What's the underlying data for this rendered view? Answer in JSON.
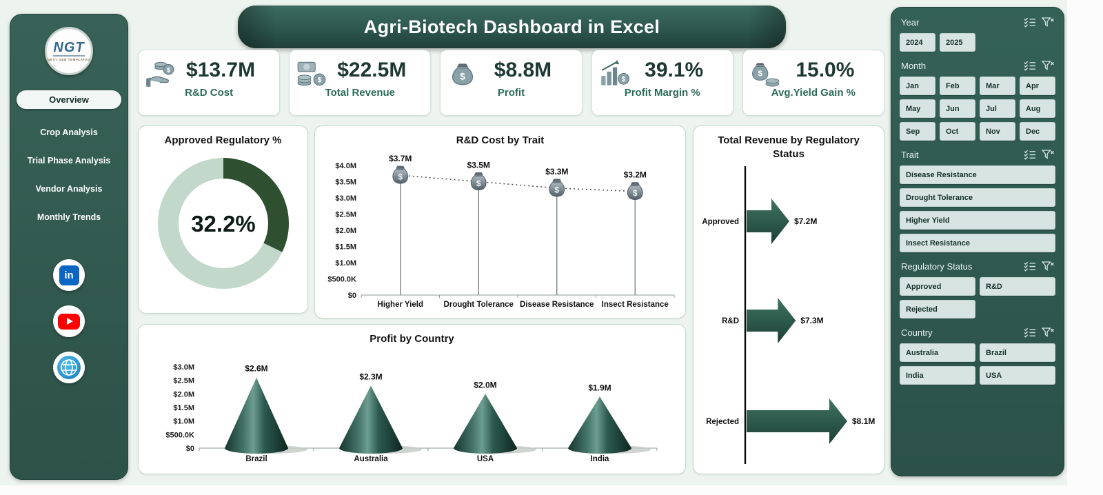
{
  "page": {
    "title": "Agri-Biotech Dashboard in Excel"
  },
  "sidebar": {
    "logo_text": "NGT",
    "logo_sub": "NEXT GEN TEMPLATES",
    "nav": [
      {
        "label": "Overview",
        "active": true
      },
      {
        "label": "Crop Analysis"
      },
      {
        "label": "Trial Phase Analysis"
      },
      {
        "label": "Vendor Analysis"
      },
      {
        "label": "Monthly Trends"
      }
    ],
    "social": {
      "linkedin_glyph": "in"
    }
  },
  "kpis": [
    {
      "value": "$13.7M",
      "label": "R&D Cost",
      "icon": "hand-coins-icon"
    },
    {
      "value": "$22.5M",
      "label": "Total Revenue",
      "icon": "cash-coins-icon"
    },
    {
      "value": "$8.8M",
      "label": "Profit",
      "icon": "money-bag-icon"
    },
    {
      "value": "39.1%",
      "label": "Profit Margin %",
      "icon": "chart-growth-icon"
    },
    {
      "value": "15.0%",
      "label": "Avg.Yield Gain %",
      "icon": "bag-coins-icon"
    }
  ],
  "chart_data": [
    {
      "type": "donut",
      "title": "Approved Regulatory %",
      "value": 32.2,
      "label": "32.2%",
      "colors": {
        "filled": "#2e4f30",
        "rest": "#c2d8ca"
      }
    },
    {
      "type": "lollipop",
      "title": "R&D Cost by Trait",
      "categories": [
        "Higher Yield",
        "Drought Tolerance",
        "Disease Resistance",
        "Insect Resistance"
      ],
      "values": [
        3.7,
        3.5,
        3.3,
        3.2
      ],
      "labels": [
        "$3.7M",
        "$3.5M",
        "$3.3M",
        "$3.2M"
      ],
      "ytick_labels": [
        "$4.0M",
        "$3.5M",
        "$3.0M",
        "$2.5M",
        "$2.0M",
        "$1.5M",
        "$1.0M",
        "$500.0K",
        "$0"
      ],
      "ymax": 4.0,
      "marker": "money-bag",
      "trendline": "dotted"
    },
    {
      "type": "cone-bar",
      "title": "Profit by Country",
      "categories": [
        "Brazil",
        "Australia",
        "USA",
        "India"
      ],
      "values": [
        2.6,
        2.3,
        2.0,
        1.9
      ],
      "labels": [
        "$2.6M",
        "$2.3M",
        "$2.0M",
        "$1.9M"
      ],
      "ytick_labels": [
        "$3.0M",
        "$2.5M",
        "$2.0M",
        "$1.5M",
        "$1.0M",
        "$500.0K",
        "$0"
      ],
      "ymax": 3.0
    },
    {
      "type": "arrow-bar",
      "title": "Total Revenue by Regulatory Status",
      "categories": [
        "Approved",
        "R&D",
        "Rejected"
      ],
      "values": [
        7.2,
        7.3,
        8.1
      ],
      "labels": [
        "$7.2M",
        "$7.3M",
        "$8.1M"
      ],
      "orientation": "horizontal",
      "color": "#2d5a4c"
    }
  ],
  "slicers": {
    "year": {
      "title": "Year",
      "items": [
        "2024",
        "2025"
      ]
    },
    "month": {
      "title": "Month",
      "items": [
        "Jan",
        "Feb",
        "Mar",
        "Apr",
        "May",
        "Jun",
        "Jul",
        "Aug",
        "Sep",
        "Oct",
        "Nov",
        "Dec"
      ]
    },
    "trait": {
      "title": "Trait",
      "items": [
        "Disease Resistance",
        "Drought Tolerance",
        "Higher Yield",
        "Insect Resistance"
      ]
    },
    "regulatory_status": {
      "title": "Regulatory Status",
      "items": [
        "Approved",
        "R&D",
        "Rejected"
      ]
    },
    "country": {
      "title": "Country",
      "items": [
        "Australia",
        "Brazil",
        "India",
        "USA"
      ]
    }
  },
  "colors": {
    "panel_green": "#2e5a50",
    "page_bg": "#edf3ef",
    "kpi_value": "#1d3832",
    "kpi_label": "#2d6a5a",
    "slicer_button_bg": "#d8e4e1"
  }
}
